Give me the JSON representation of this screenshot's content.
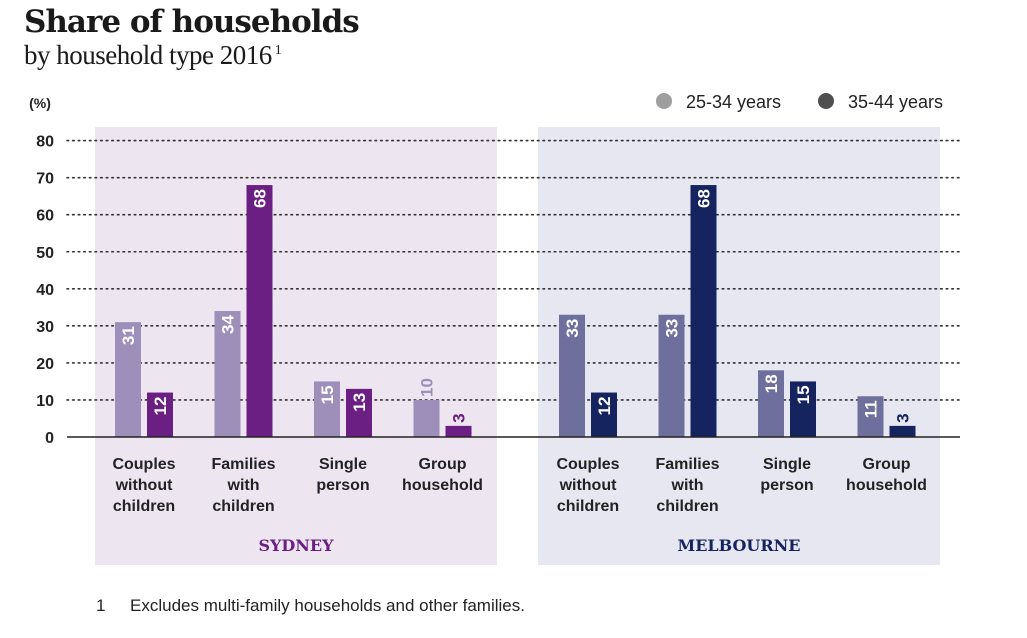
{
  "title": "Share of households",
  "subtitle": "by household type 2016",
  "subtitle_note_marker": "1",
  "footnote": {
    "number": "1",
    "text": "Excludes multi-family households and other families."
  },
  "colors": {
    "sydney_panel": "#ede6f1",
    "melbourne_panel": "#e6e7f1",
    "sydney_25_34": "#9d8fba",
    "sydney_35_44": "#6b1f83",
    "melbourne_25_34": "#6f6f9d",
    "melbourne_35_44": "#15235f",
    "legend_25_34": "#9e9e9e",
    "legend_35_44": "#4f4f4f",
    "axis": "#222222",
    "grid": "#333333"
  },
  "chart_data": {
    "type": "bar",
    "ylabel": "(%)",
    "ylim": [
      0,
      80
    ],
    "yticks": [
      0,
      10,
      20,
      30,
      40,
      50,
      60,
      70,
      80
    ],
    "grid": true,
    "legend": {
      "placement": "top-right",
      "entries": [
        "25-34 years",
        "35-44 years"
      ]
    },
    "categories": [
      [
        "Couples",
        "without",
        "children"
      ],
      [
        "Families",
        "with",
        "children"
      ],
      [
        "Single",
        "person"
      ],
      [
        "Group",
        "household"
      ]
    ],
    "panels": [
      {
        "name": "SYDNEY",
        "series": [
          {
            "name": "25-34 years",
            "values": [
              31,
              34,
              15,
              10
            ]
          },
          {
            "name": "35-44 years",
            "values": [
              12,
              68,
              13,
              3
            ]
          }
        ]
      },
      {
        "name": "MELBOURNE",
        "series": [
          {
            "name": "25-34 years",
            "values": [
              33,
              33,
              18,
              11
            ]
          },
          {
            "name": "35-44 years",
            "values": [
              12,
              68,
              15,
              3
            ]
          }
        ]
      }
    ]
  }
}
